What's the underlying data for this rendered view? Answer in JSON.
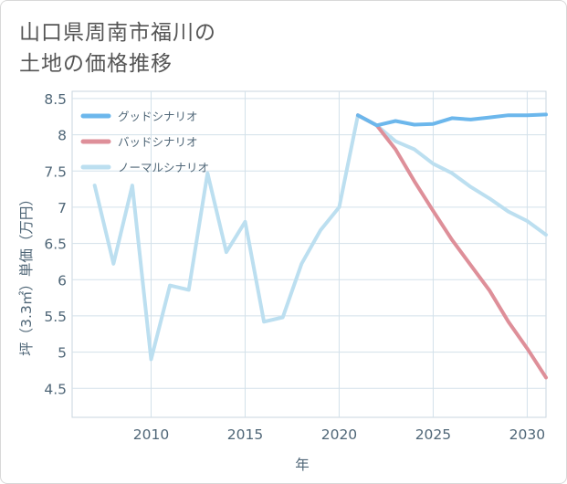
{
  "title_lines": [
    "山口県周南市福川の",
    "土地の価格推移"
  ],
  "chart_data": {
    "type": "line",
    "title": "山口県周南市福川の土地の価格推移",
    "xlabel": "年",
    "ylabel": "坪（3.3㎡）単価（万円）",
    "xlim": [
      2005.8,
      2031
    ],
    "ylim": [
      4.1,
      8.6
    ],
    "x_ticks": [
      2010,
      2015,
      2020,
      2025,
      2030
    ],
    "x_tick_labels": [
      "2010",
      "2015",
      "2020",
      "2025",
      "2030"
    ],
    "y_ticks": [
      4.5,
      5,
      5.5,
      6,
      6.5,
      7,
      7.5,
      8,
      8.5
    ],
    "y_tick_labels": [
      "4.5",
      "5",
      "5.5",
      "6",
      "6.5",
      "7",
      "7.5",
      "8",
      "8.5"
    ],
    "grid": true,
    "legend_position": "top-left",
    "series": [
      {
        "name": "グッドシナリオ",
        "color": "#6cb7ec",
        "x": [
          2021,
          2022,
          2023,
          2024,
          2025,
          2026,
          2027,
          2028,
          2029,
          2030,
          2031
        ],
        "values": [
          8.27,
          8.13,
          8.19,
          8.14,
          8.15,
          8.23,
          8.21,
          8.24,
          8.27,
          8.27,
          8.28
        ]
      },
      {
        "name": "バッドシナリオ",
        "color": "#de8f99",
        "x": [
          2021,
          2022,
          2023,
          2024,
          2025,
          2026,
          2027,
          2028,
          2029,
          2030,
          2031
        ],
        "values": [
          8.27,
          8.13,
          7.8,
          7.36,
          6.95,
          6.55,
          6.2,
          5.85,
          5.42,
          5.05,
          4.65
        ]
      },
      {
        "name": "ノーマルシナリオ",
        "color": "#bcdff0",
        "x": [
          2007,
          2008,
          2009,
          2010,
          2011,
          2012,
          2013,
          2014,
          2015,
          2016,
          2017,
          2018,
          2019,
          2020,
          2021,
          2022,
          2023,
          2024,
          2025,
          2026,
          2027,
          2028,
          2029,
          2030,
          2031
        ],
        "values": [
          7.3,
          6.22,
          7.3,
          4.9,
          5.92,
          5.86,
          7.47,
          6.38,
          6.8,
          5.42,
          5.48,
          6.22,
          6.68,
          7.0,
          8.27,
          8.13,
          7.91,
          7.8,
          7.6,
          7.47,
          7.28,
          7.12,
          6.94,
          6.81,
          6.62
        ]
      }
    ]
  }
}
